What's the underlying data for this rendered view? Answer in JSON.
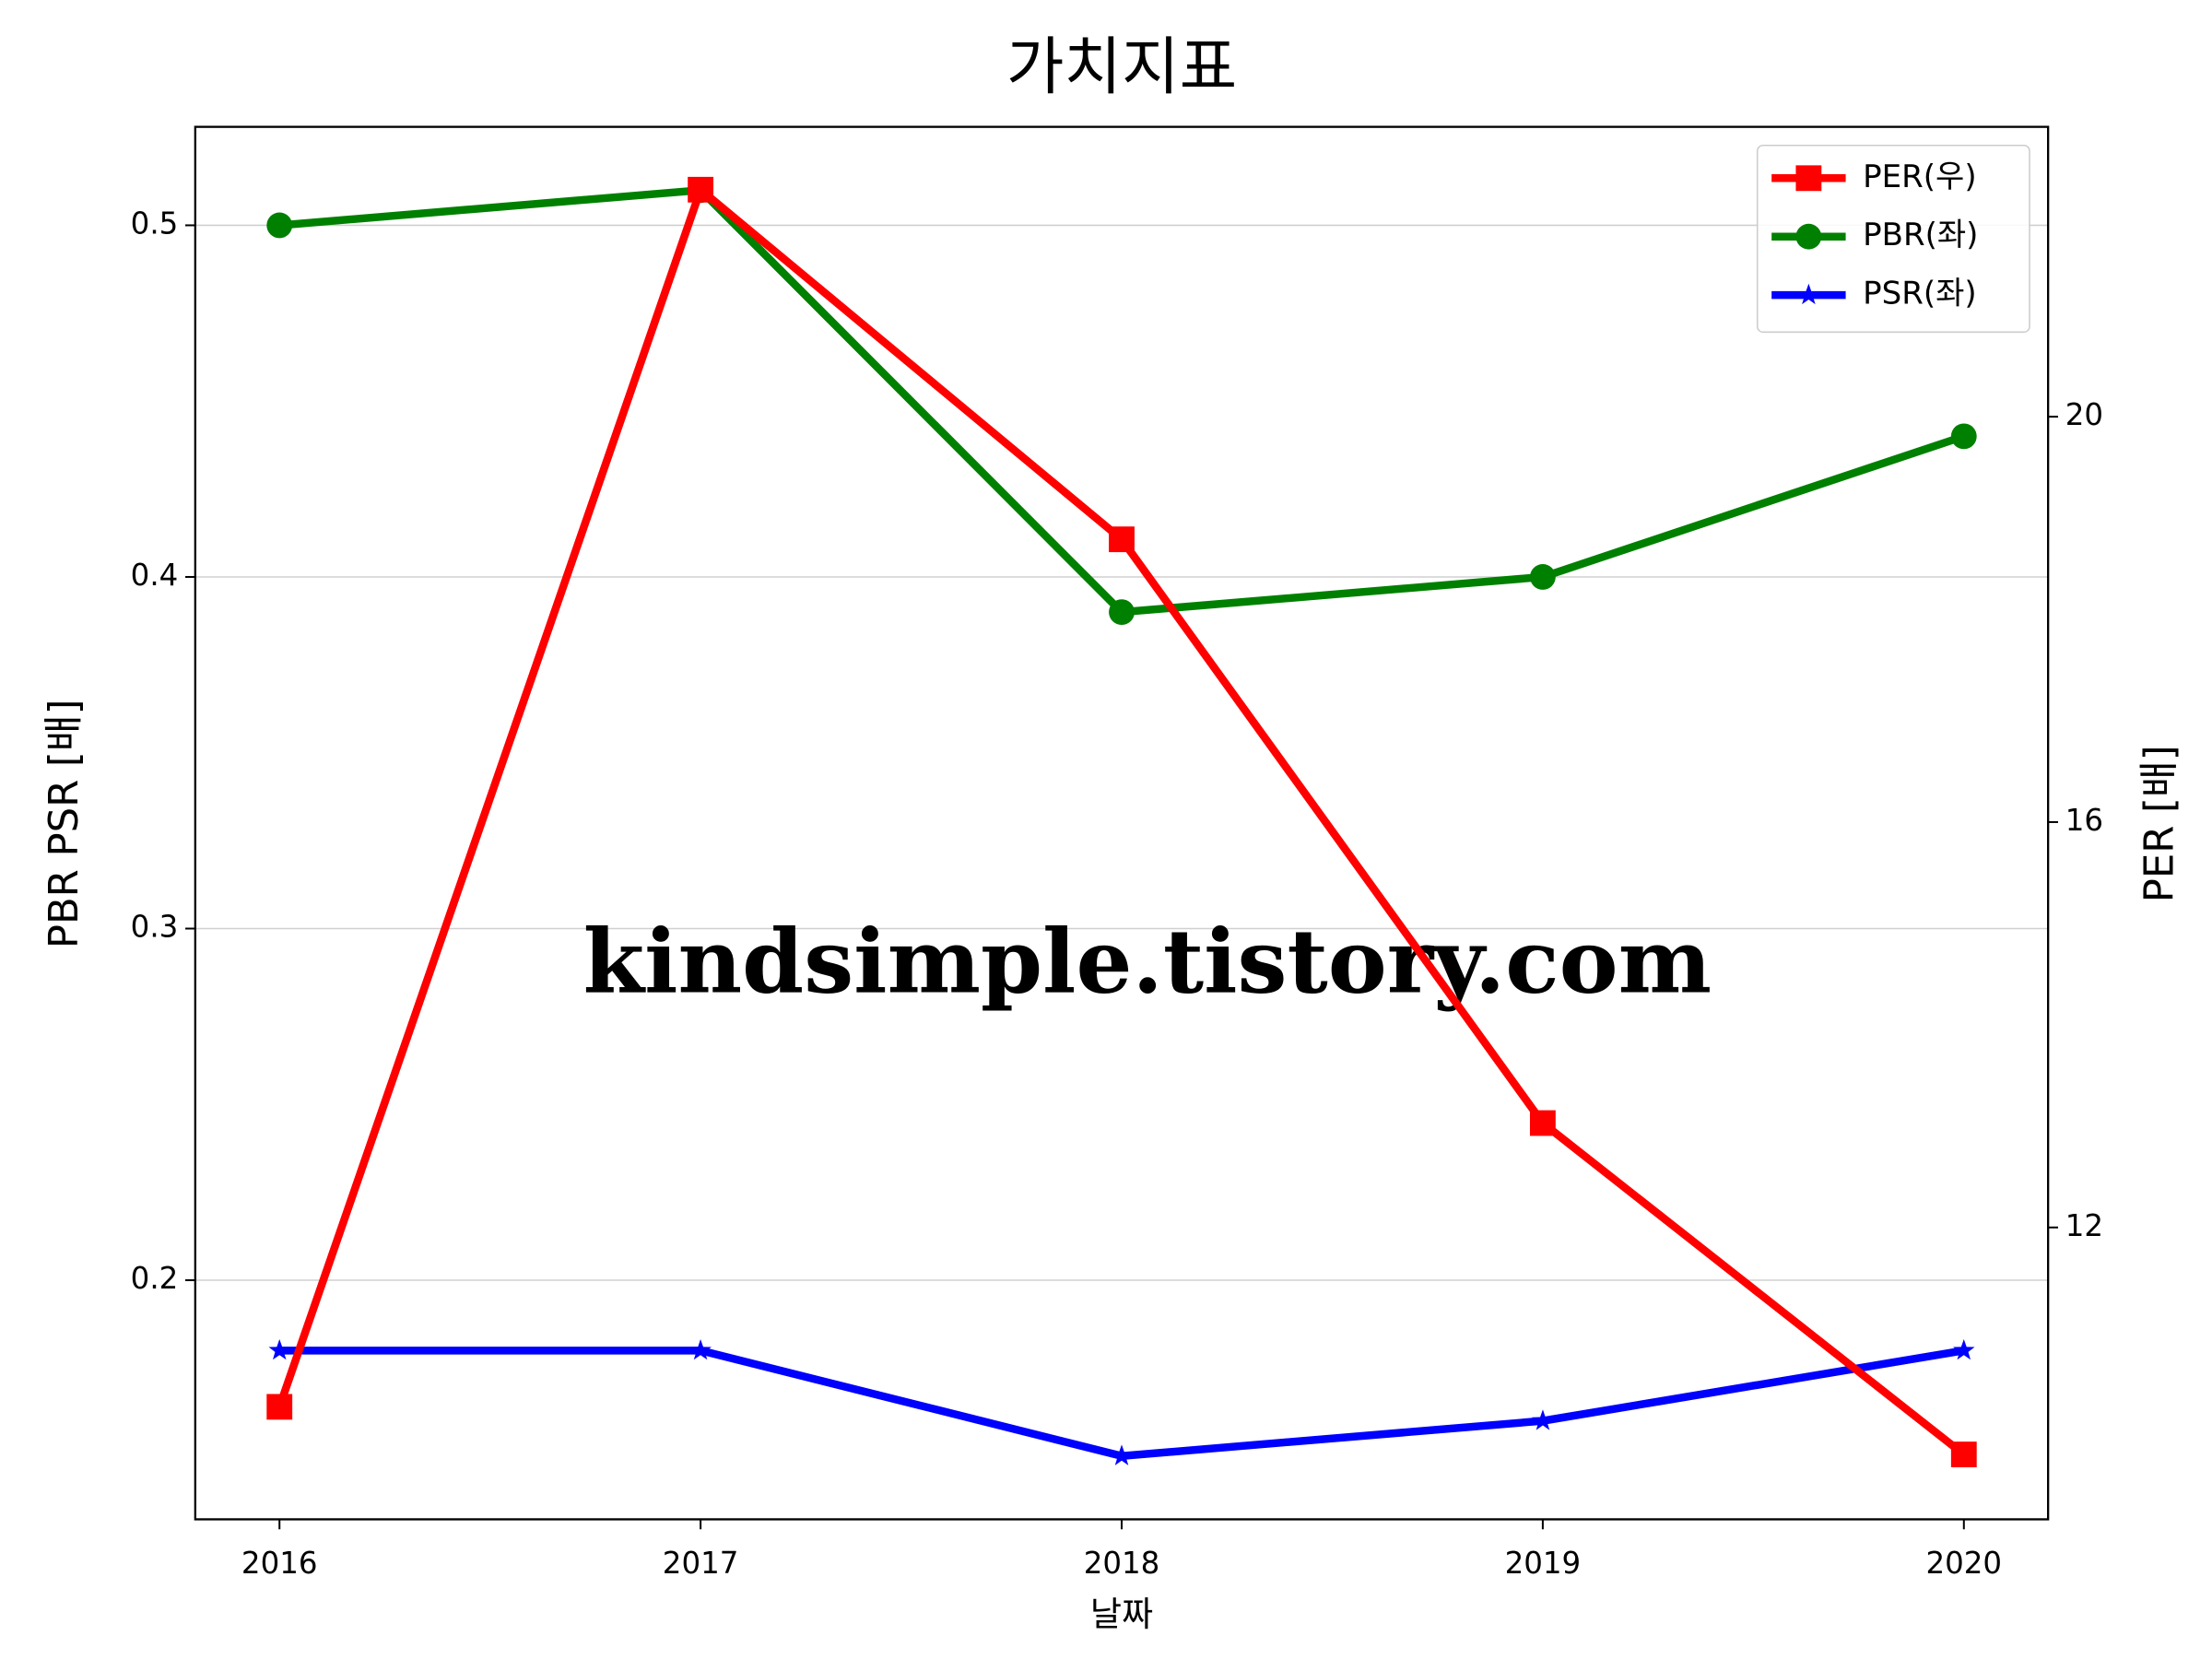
{
  "chart_data": {
    "type": "line",
    "title": "가치지표",
    "x_label": "날짜",
    "y_label": "PBR PSR [배]",
    "y2_label": "PER [배]",
    "watermark": "kindsimple.tistory.com",
    "x": [
      2016,
      2017,
      2018,
      2019,
      2020
    ],
    "xlim": [
      2015.8,
      2020.2
    ],
    "xticks": [
      2016,
      2017,
      2018,
      2019,
      2020
    ],
    "ylim": [
      0.132,
      0.528
    ],
    "yticks": [
      0.2,
      0.3,
      0.4,
      0.5
    ],
    "y2lim": [
      9.12,
      22.86
    ],
    "y2ticks": [
      12,
      16,
      20
    ],
    "grid": true,
    "legend": "upper right",
    "y_label_color": "#008000",
    "y2_label_color": "#ff0000",
    "series": [
      {
        "name": "PER(우)",
        "color": "#ff0000",
        "marker": "square",
        "axis": "y2",
        "values": [
          10.23,
          22.24,
          18.79,
          13.03,
          9.76
        ]
      },
      {
        "name": "PBR(좌)",
        "color": "#008000",
        "marker": "circle",
        "values": [
          0.5,
          0.51,
          0.39,
          0.4,
          0.44
        ]
      },
      {
        "name": "PSR(좌)",
        "color": "#0000ff",
        "marker": "star",
        "values": [
          0.18,
          0.18,
          0.15,
          0.16,
          0.18
        ]
      }
    ]
  }
}
